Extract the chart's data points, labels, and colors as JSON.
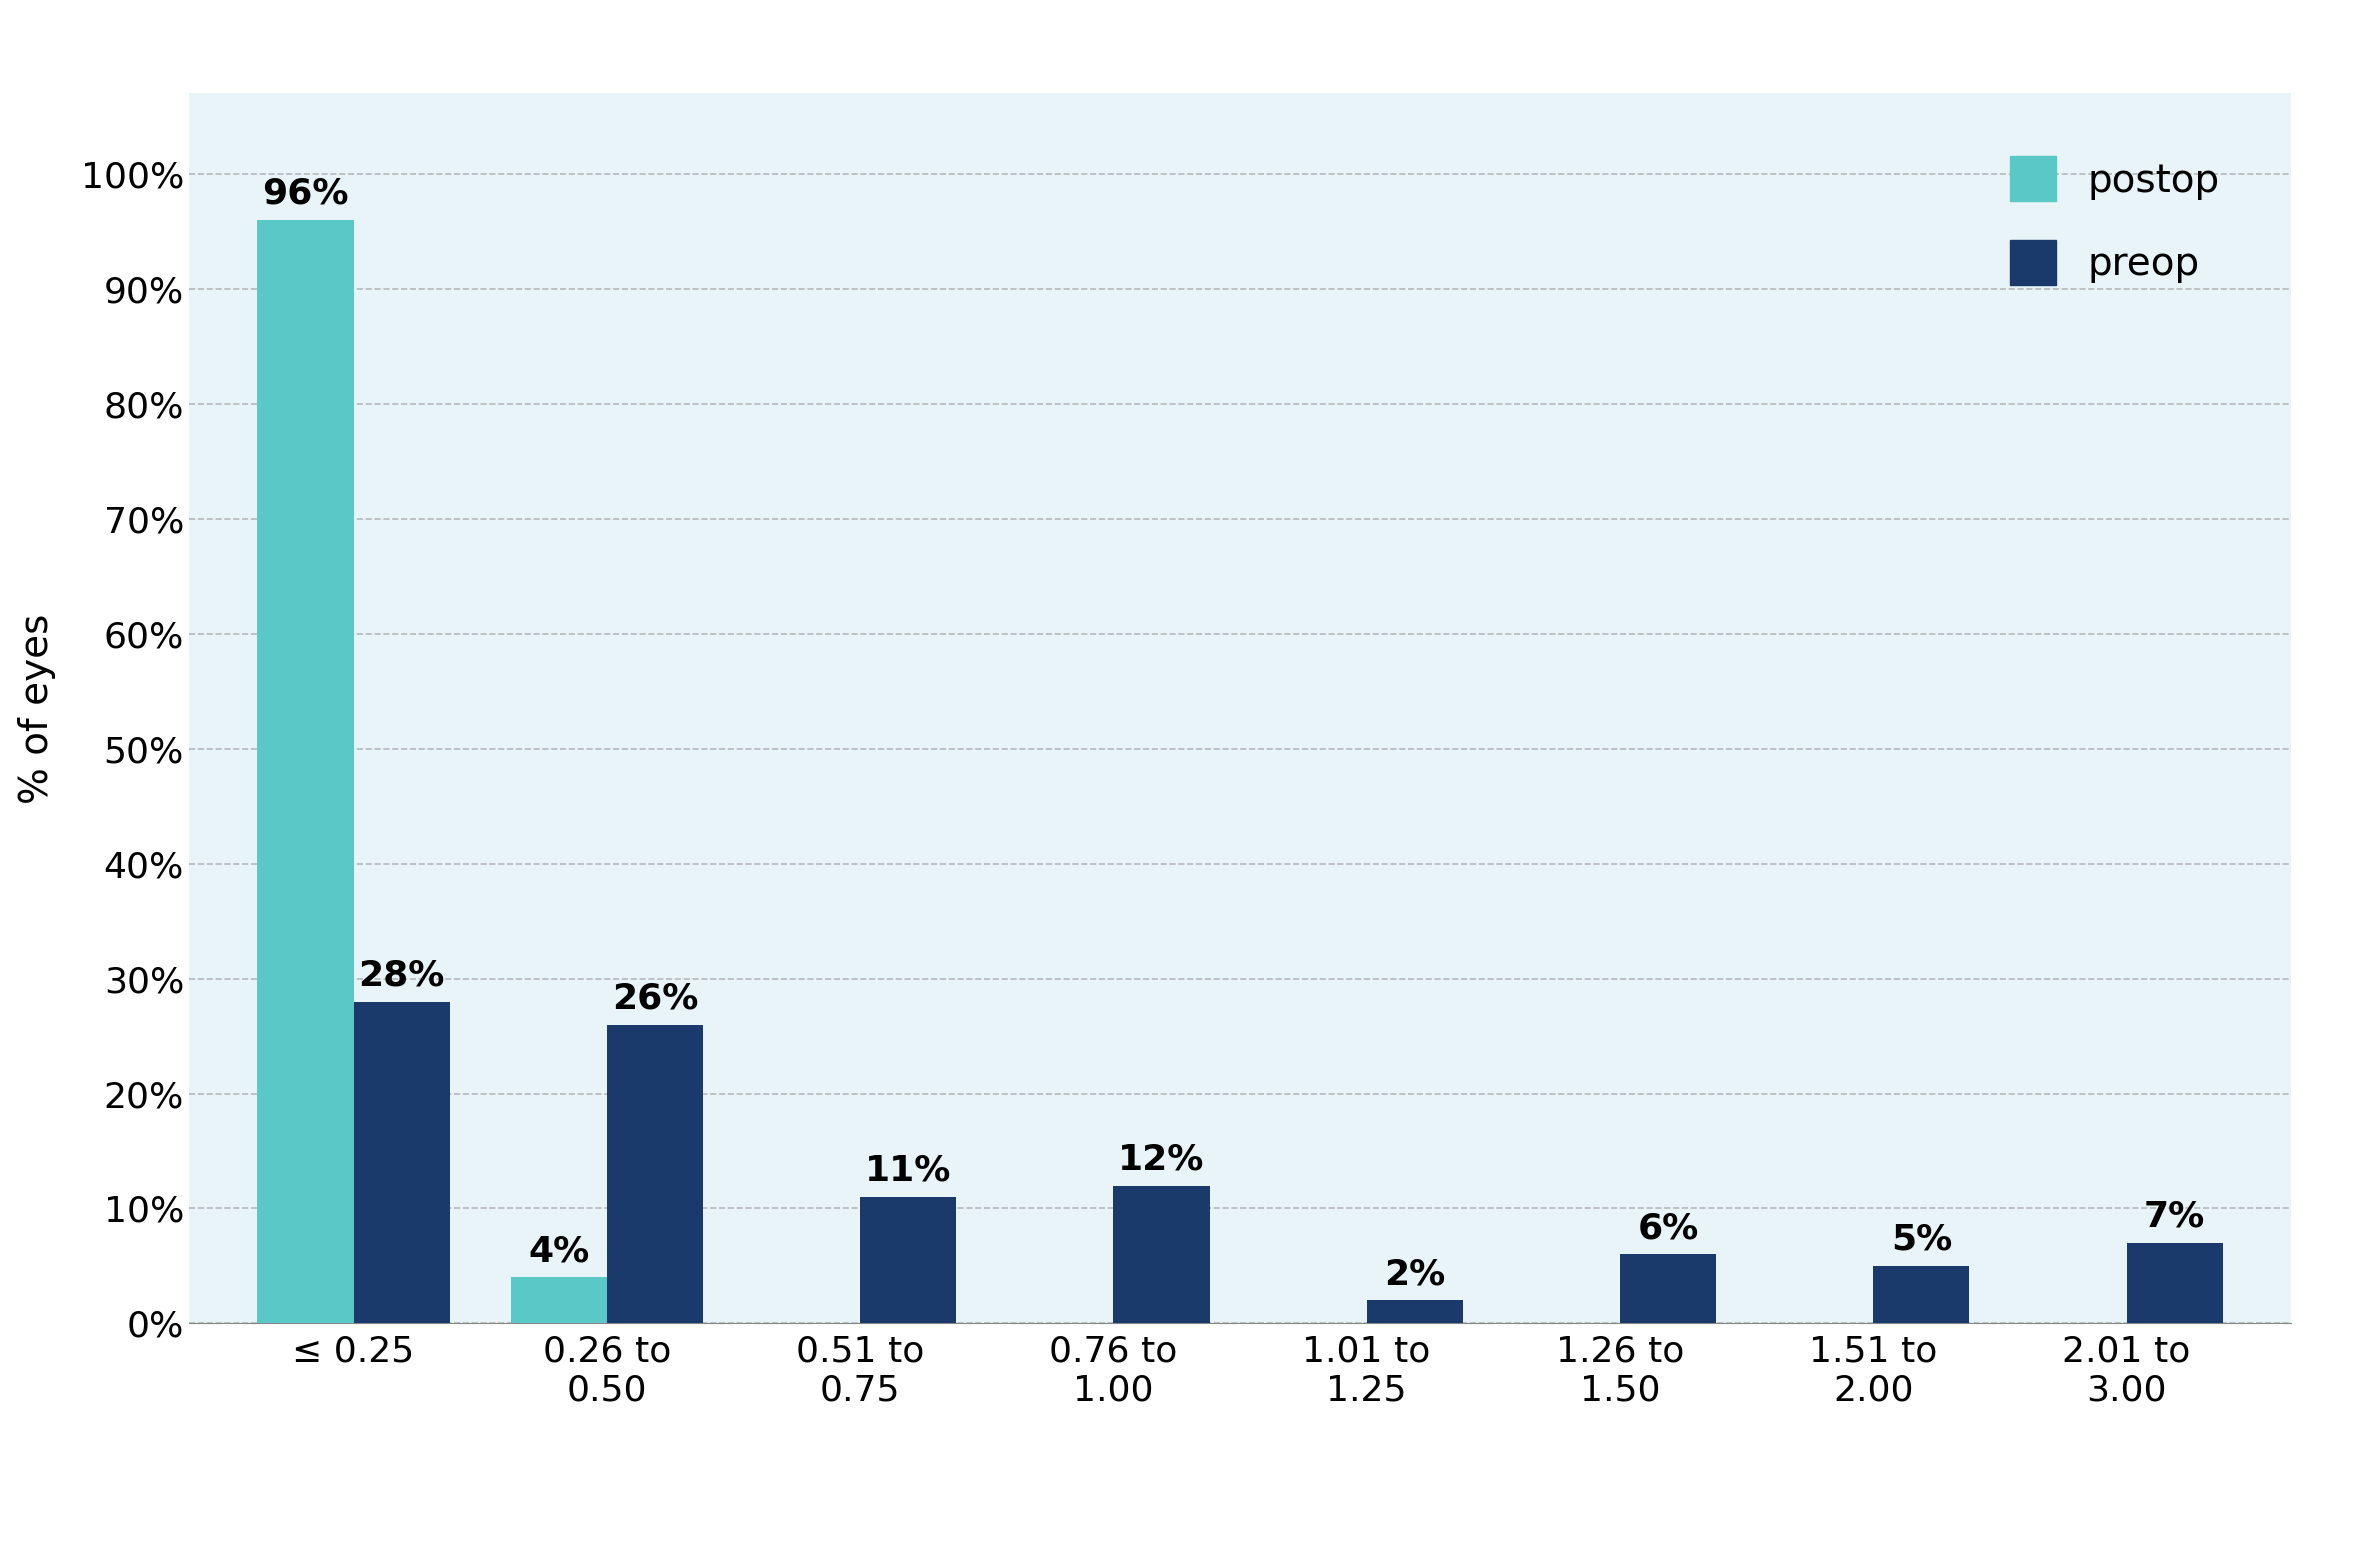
{
  "categories": [
    "≤ 0.25",
    "0.26 to\n0.50",
    "0.51 to\n0.75",
    "0.76 to\n1.00",
    "1.01 to\n1.25",
    "1.26 to\n1.50",
    "1.51 to\n2.00",
    "2.01 to\n3.00"
  ],
  "postop_values": [
    96,
    4,
    0,
    0,
    0,
    0,
    0,
    0
  ],
  "preop_values": [
    28,
    26,
    11,
    12,
    2,
    6,
    5,
    7
  ],
  "postop_color": "#5BC8C8",
  "preop_color": "#1A3A6B",
  "ylabel": "% of eyes",
  "ylim": [
    0,
    107
  ],
  "yticks": [
    0,
    10,
    20,
    30,
    40,
    50,
    60,
    70,
    80,
    90,
    100
  ],
  "ytick_labels": [
    "0%",
    "10%",
    "20%",
    "30%",
    "40%",
    "50%",
    "60%",
    "70%",
    "80%",
    "90%",
    "100%"
  ],
  "legend_postop": "postop",
  "legend_preop": "preop",
  "bar_width": 0.38,
  "label_fontsize": 28,
  "tick_fontsize": 26,
  "legend_fontsize": 28,
  "annotation_fontsize": 26,
  "grid_color": "#AAAAAA",
  "grid_alpha": 0.8,
  "plot_bg_color": "#E8F4F8"
}
